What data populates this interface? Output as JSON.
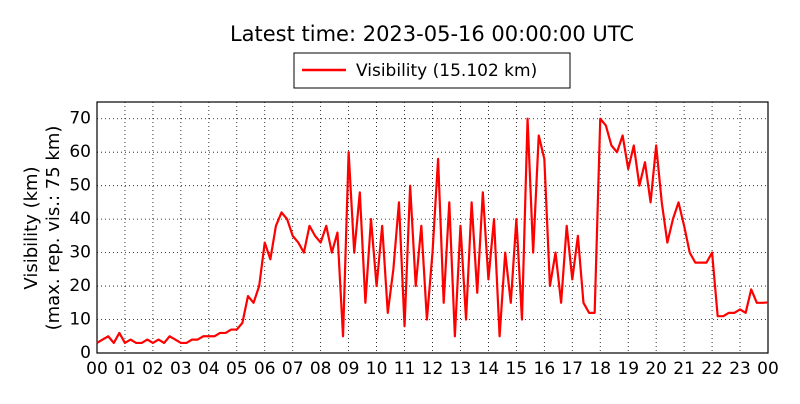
{
  "chart_data": {
    "type": "line",
    "title": "Latest time: 2023-05-16 00:00:00 UTC",
    "y_label": [
      "Visibility (km)",
      "(max. rep. vis.: 75 km)"
    ],
    "x": [
      0,
      0.2,
      0.4,
      0.6,
      0.8,
      1,
      1.2,
      1.4,
      1.6,
      1.8,
      2,
      2.2,
      2.4,
      2.6,
      2.8,
      3,
      3.2,
      3.4,
      3.6,
      3.8,
      4,
      4.2,
      4.4,
      4.6,
      4.8,
      5,
      5.2,
      5.4,
      5.6,
      5.8,
      6,
      6.2,
      6.4,
      6.6,
      6.8,
      7,
      7.2,
      7.4,
      7.6,
      7.8,
      8,
      8.2,
      8.4,
      8.6,
      8.8,
      9,
      9.2,
      9.4,
      9.6,
      9.8,
      10,
      10.2,
      10.4,
      10.6,
      10.8,
      11,
      11.2,
      11.4,
      11.6,
      11.8,
      12,
      12.2,
      12.4,
      12.6,
      12.8,
      13,
      13.2,
      13.4,
      13.6,
      13.8,
      14,
      14.2,
      14.4,
      14.6,
      14.8,
      15,
      15.2,
      15.4,
      15.6,
      15.8,
      16,
      16.2,
      16.4,
      16.6,
      16.8,
      17,
      17.2,
      17.4,
      17.6,
      17.8,
      18,
      18.2,
      18.4,
      18.6,
      18.8,
      19,
      19.2,
      19.4,
      19.6,
      19.8,
      20,
      20.2,
      20.4,
      20.6,
      20.8,
      21,
      21.2,
      21.4,
      21.6,
      21.8,
      22,
      22.2,
      22.4,
      22.6,
      22.8,
      23,
      23.2,
      23.4,
      23.6,
      23.8,
      24
    ],
    "series": [
      {
        "name": "Visibility (15.102 km)",
        "color": "#ff0000",
        "values": [
          3,
          4,
          5,
          3,
          6,
          3,
          4,
          3,
          3,
          4,
          3,
          4,
          3,
          5,
          4,
          3,
          3,
          4,
          4,
          5,
          5,
          5,
          6,
          6,
          7,
          7,
          9,
          17,
          15,
          20,
          33,
          28,
          38,
          42,
          40,
          35,
          33,
          30,
          38,
          35,
          33,
          38,
          30,
          36,
          5,
          60,
          30,
          48,
          15,
          40,
          20,
          38,
          12,
          25,
          45,
          8,
          50,
          20,
          38,
          10,
          30,
          58,
          15,
          45,
          5,
          38,
          10,
          45,
          18,
          48,
          22,
          40,
          5,
          30,
          15,
          40,
          10,
          70,
          30,
          65,
          58,
          20,
          30,
          15,
          38,
          22,
          35,
          15,
          12,
          12,
          70,
          68,
          62,
          60,
          65,
          55,
          62,
          50,
          57,
          45,
          62,
          45,
          33,
          40,
          45,
          38,
          30,
          27,
          27,
          27,
          30,
          11,
          11,
          12,
          12,
          13,
          12,
          19,
          15,
          15,
          15.102
        ]
      }
    ],
    "xlim": [
      0,
      24
    ],
    "xticks": [
      {
        "value": 0,
        "label": "00"
      },
      {
        "value": 1,
        "label": "01"
      },
      {
        "value": 2,
        "label": "02"
      },
      {
        "value": 3,
        "label": "03"
      },
      {
        "value": 4,
        "label": "04"
      },
      {
        "value": 5,
        "label": "05"
      },
      {
        "value": 6,
        "label": "06"
      },
      {
        "value": 7,
        "label": "07"
      },
      {
        "value": 8,
        "label": "08"
      },
      {
        "value": 9,
        "label": "09"
      },
      {
        "value": 10,
        "label": "10"
      },
      {
        "value": 11,
        "label": "11"
      },
      {
        "value": 12,
        "label": "12"
      },
      {
        "value": 13,
        "label": "13"
      },
      {
        "value": 14,
        "label": "14"
      },
      {
        "value": 15,
        "label": "15"
      },
      {
        "value": 16,
        "label": "16"
      },
      {
        "value": 17,
        "label": "17"
      },
      {
        "value": 18,
        "label": "18"
      },
      {
        "value": 19,
        "label": "19"
      },
      {
        "value": 20,
        "label": "20"
      },
      {
        "value": 21,
        "label": "21"
      },
      {
        "value": 22,
        "label": "22"
      },
      {
        "value": 23,
        "label": "23"
      },
      {
        "value": 24,
        "label": "00"
      }
    ],
    "ylim": [
      0,
      75
    ],
    "yticks": [
      0,
      10,
      20,
      30,
      40,
      50,
      60,
      70
    ],
    "grid": true
  }
}
